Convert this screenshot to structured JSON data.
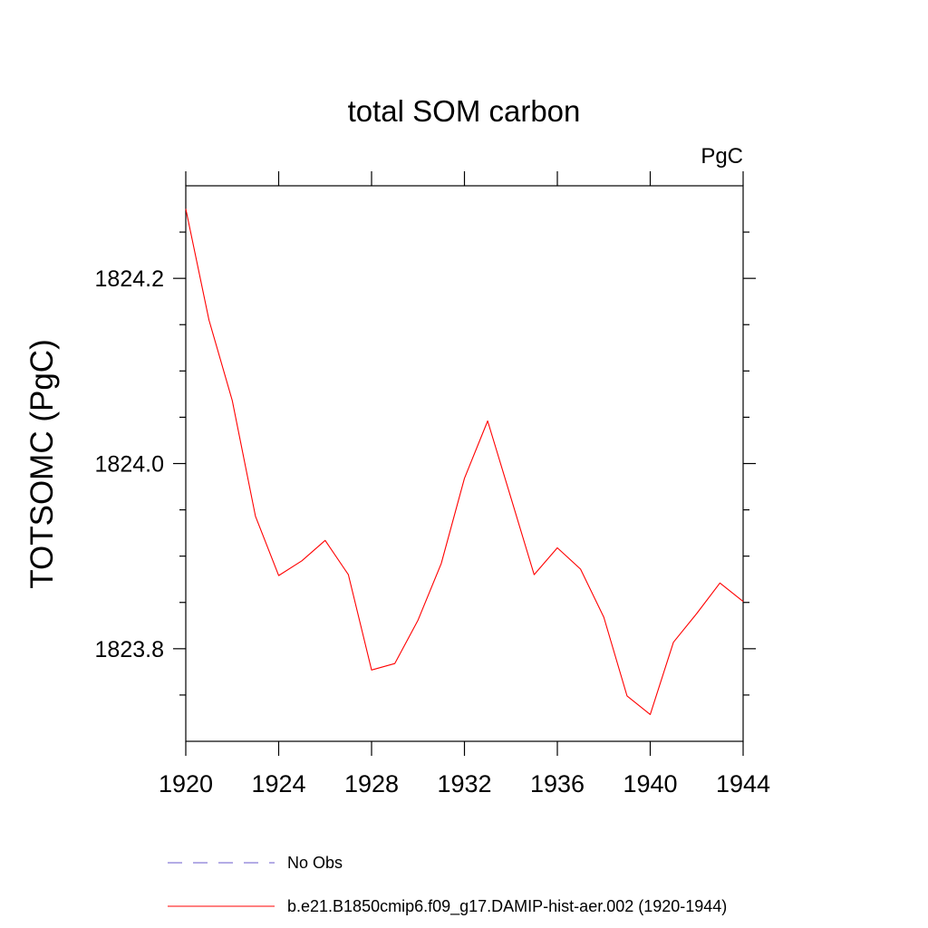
{
  "chart_data": {
    "type": "line",
    "title": "total SOM carbon",
    "units_label": "PgC",
    "ylabel": "TOTSOMC  (PgC)",
    "xlabel": "",
    "xlim": [
      1920,
      1944
    ],
    "ylim": [
      1823.7,
      1824.3
    ],
    "x_ticks": [
      1920,
      1924,
      1928,
      1932,
      1936,
      1940,
      1944
    ],
    "x_tick_labels": [
      "1920",
      "1924",
      "1928",
      "1932",
      "1936",
      "1940",
      "1944"
    ],
    "y_ticks": [
      1823.8,
      1824.0,
      1824.2
    ],
    "y_tick_labels": [
      "1823.8",
      "1824.0",
      "1824.2"
    ],
    "y_minor_step": 0.05,
    "x": [
      1920,
      1921,
      1922,
      1923,
      1924,
      1925,
      1926,
      1927,
      1928,
      1929,
      1930,
      1931,
      1932,
      1933,
      1934,
      1935,
      1936,
      1937,
      1938,
      1939,
      1940,
      1941,
      1942,
      1943,
      1944
    ],
    "series": [
      {
        "name": "b.e21.B1850cmip6.f09_g17.DAMIP-hist-aer.002 (1920-1944)",
        "color": "#ff0000",
        "style": "solid",
        "values": [
          1824.275,
          1824.155,
          1824.068,
          1823.943,
          1823.879,
          1823.895,
          1823.917,
          1823.88,
          1823.777,
          1823.784,
          1823.831,
          1823.892,
          1823.984,
          1824.046,
          1823.963,
          1823.88,
          1823.909,
          1823.886,
          1823.834,
          1823.749,
          1823.729,
          1823.807,
          1823.838,
          1823.871,
          1823.851
        ]
      }
    ],
    "legend": {
      "placement": "bottom",
      "entries": [
        {
          "label": "No Obs",
          "color": "#6a5acd",
          "style": "dashed"
        },
        {
          "label": "b.e21.B1850cmip6.f09_g17.DAMIP-hist-aer.002 (1920-1944)",
          "color": "#ff0000",
          "style": "solid"
        }
      ]
    },
    "grid": false
  }
}
